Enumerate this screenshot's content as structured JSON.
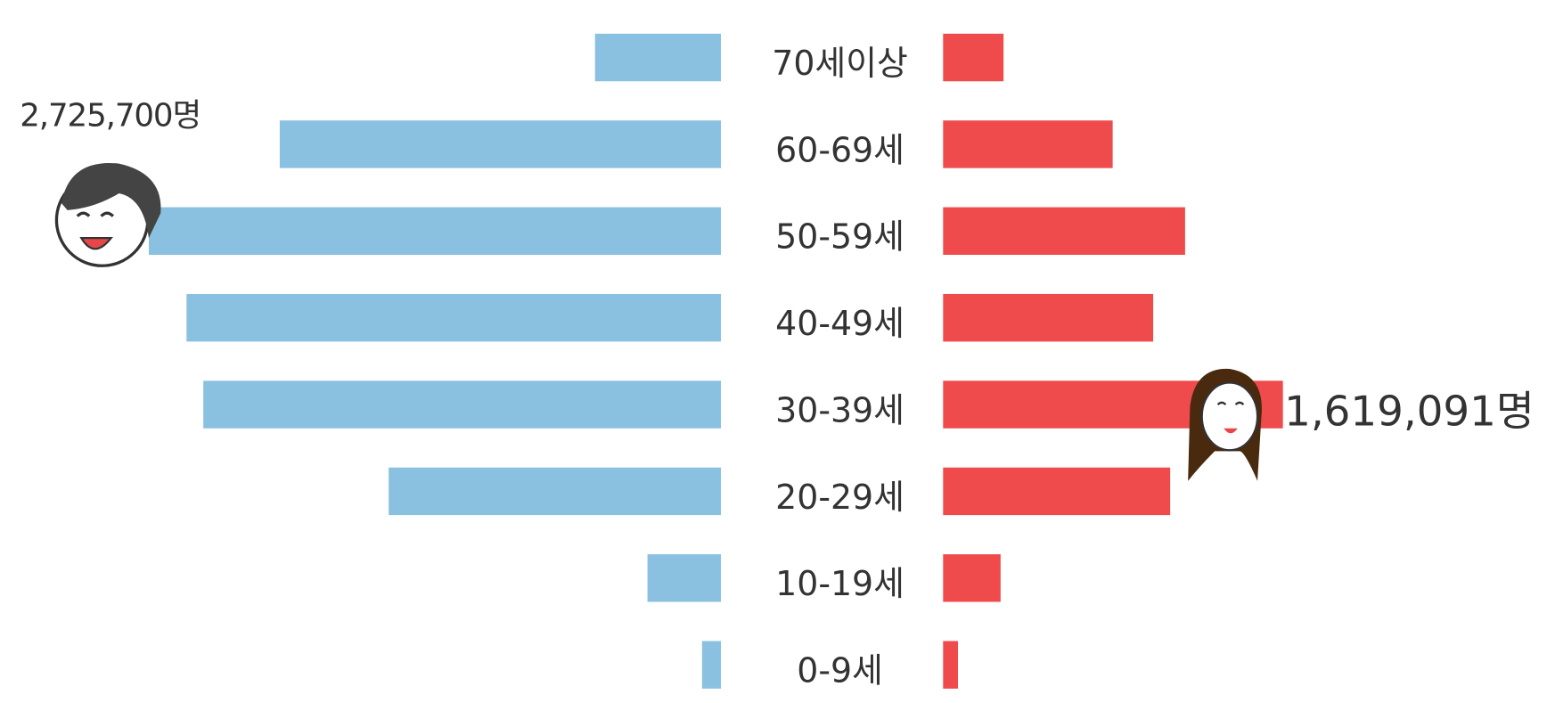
{
  "chart_data": {
    "type": "butterfly",
    "categories": [
      "70세이상",
      "60-69세",
      "50-59세",
      "40-49세",
      "30-39세",
      "20-29세",
      "10-19세",
      "0-9세"
    ],
    "series": [
      {
        "color": "#8bc1e0",
        "values": [
          600000,
          2102000,
          2725700,
          2546000,
          2466000,
          1583000,
          350000,
          90000
        ],
        "value_labels": [
          null,
          null,
          "2,725,700명",
          null,
          null,
          null,
          null,
          null
        ]
      },
      {
        "color": "#ef4b4c",
        "values": [
          288000,
          808000,
          1153000,
          1001000,
          1619091,
          1082000,
          274000,
          71000
        ],
        "value_labels": [
          null,
          null,
          null,
          null,
          "1,619,091명",
          null,
          null,
          null
        ]
      }
    ],
    "xlim": [
      0,
      3000000
    ]
  }
}
